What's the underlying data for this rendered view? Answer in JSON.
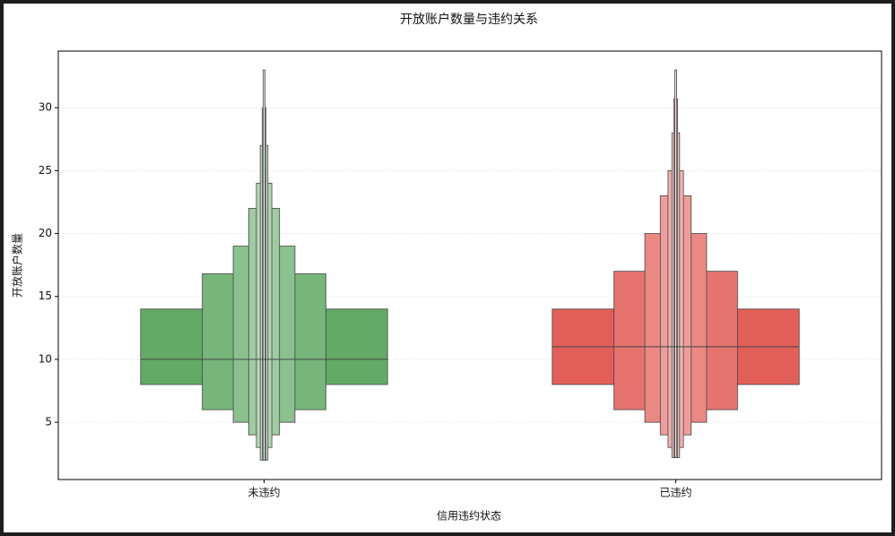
{
  "chart_data": {
    "type": "boxen",
    "title": "开放账户数量与违约关系",
    "x_label": "信用违约状态",
    "y_label": "开放账户数量",
    "categories": [
      "未违约",
      "已违约"
    ],
    "colors": [
      "#55a35a",
      "#e0514a"
    ],
    "boxes": [
      {
        "median": 10,
        "levels": [
          [
            8,
            14
          ],
          [
            6,
            16.8
          ],
          [
            5,
            19
          ],
          [
            4,
            22
          ],
          [
            3,
            24
          ],
          [
            2,
            27
          ],
          [
            2,
            30
          ],
          [
            2,
            33
          ]
        ]
      },
      {
        "median": 11,
        "levels": [
          [
            8,
            14
          ],
          [
            6,
            17
          ],
          [
            5,
            20
          ],
          [
            4,
            23
          ],
          [
            3,
            25
          ],
          [
            2.2,
            28
          ],
          [
            2.2,
            30.7
          ],
          [
            2.2,
            33
          ]
        ]
      }
    ],
    "ylim": [
      0.45,
      34.5
    ],
    "yticks": [
      5,
      10,
      15,
      20,
      25,
      30
    ],
    "grid": true
  }
}
